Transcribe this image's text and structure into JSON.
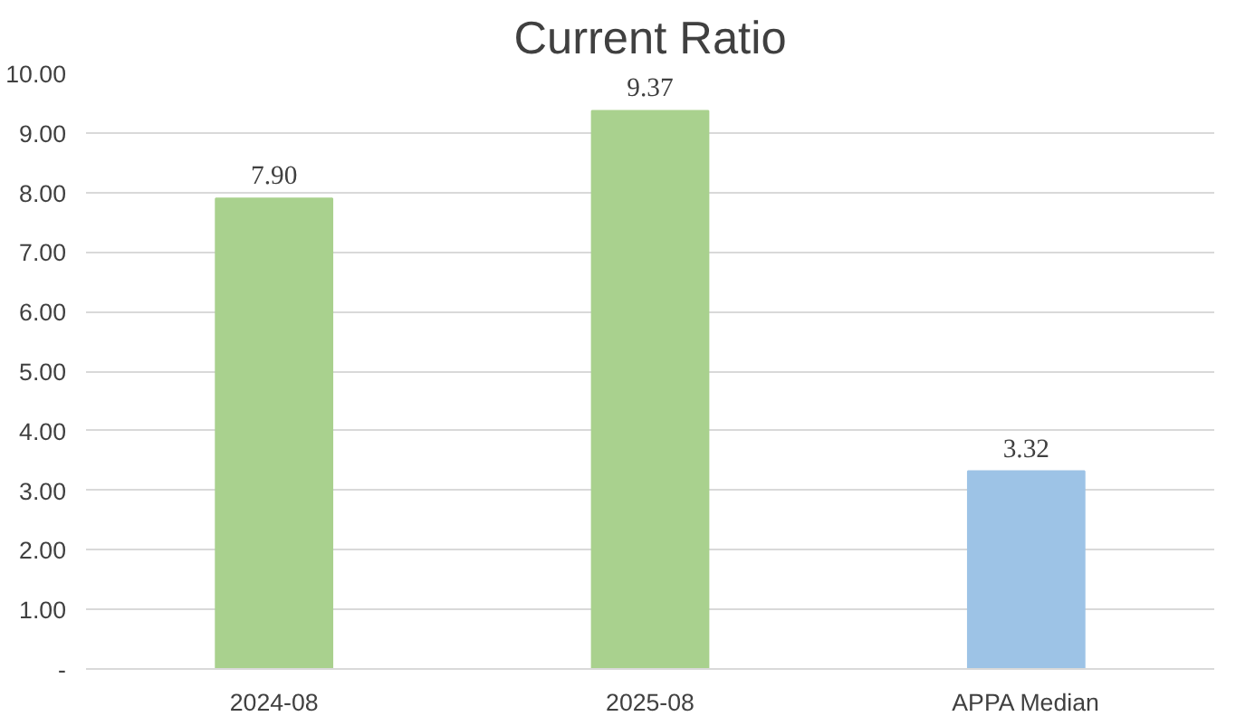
{
  "chart_data": {
    "type": "bar",
    "title": "Current Ratio",
    "categories": [
      "2024-08",
      "2025-08",
      "APPA Median"
    ],
    "values": [
      7.9,
      9.37,
      3.32
    ],
    "colors": [
      "#a9d18e",
      "#a9d18e",
      "#9dc3e6"
    ],
    "value_labels": [
      "7.90",
      "9.37",
      "3.32"
    ],
    "ylim": [
      0,
      10
    ],
    "yticks": [
      {
        "value": 0,
        "label": "-"
      },
      {
        "value": 1,
        "label": "1.00"
      },
      {
        "value": 2,
        "label": "2.00"
      },
      {
        "value": 3,
        "label": "3.00"
      },
      {
        "value": 4,
        "label": "4.00"
      },
      {
        "value": 5,
        "label": "5.00"
      },
      {
        "value": 6,
        "label": "6.00"
      },
      {
        "value": 7,
        "label": "7.00"
      },
      {
        "value": 8,
        "label": "8.00"
      },
      {
        "value": 9,
        "label": "9.00"
      },
      {
        "value": 10,
        "label": "10.00"
      }
    ],
    "grid": "y"
  }
}
